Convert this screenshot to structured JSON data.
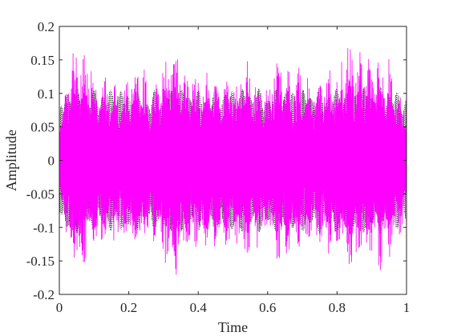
{
  "chart_data": {
    "type": "line",
    "title": "",
    "xlabel": "Time",
    "ylabel": "Amplitude",
    "xlim": [
      0,
      1
    ],
    "ylim": [
      -0.2,
      0.2
    ],
    "x_ticks": [
      0,
      0.2,
      0.4,
      0.6,
      0.8,
      1
    ],
    "x_tick_labels": [
      "0",
      "0.2",
      "0.4",
      "0.6",
      "0.8",
      "1"
    ],
    "y_ticks": [
      -0.2,
      -0.15,
      -0.1,
      -0.05,
      0,
      0.05,
      0.1,
      0.15,
      0.2
    ],
    "y_tick_labels": [
      "-0.2",
      "-0.15",
      "-0.1",
      "-0.05",
      "0",
      "0.05",
      "0.1",
      "0.15",
      "0.2"
    ],
    "grid": false,
    "legend": "none",
    "series": [
      {
        "style": "dotted",
        "color": "#000000",
        "description_values": "dense oscillation bounded by about ±0.11",
        "envelope": [
          [
            0.0,
            0.08
          ],
          [
            0.02,
            0.11
          ],
          [
            0.05,
            0.11
          ],
          [
            0.1,
            0.105
          ],
          [
            0.15,
            0.11
          ],
          [
            0.2,
            0.108
          ],
          [
            0.25,
            0.1
          ],
          [
            0.3,
            0.11
          ],
          [
            0.35,
            0.11
          ],
          [
            0.4,
            0.105
          ],
          [
            0.45,
            0.108
          ],
          [
            0.5,
            0.11
          ],
          [
            0.55,
            0.11
          ],
          [
            0.6,
            0.105
          ],
          [
            0.65,
            0.11
          ],
          [
            0.7,
            0.108
          ],
          [
            0.75,
            0.11
          ],
          [
            0.8,
            0.11
          ],
          [
            0.85,
            0.108
          ],
          [
            0.9,
            0.11
          ],
          [
            0.95,
            0.11
          ],
          [
            1.0,
            0.1
          ]
        ]
      },
      {
        "style": "solid",
        "color": "#ff00ff",
        "envelope": [
          [
            0.0,
            0.05
          ],
          [
            0.02,
            0.12
          ],
          [
            0.05,
            0.155
          ],
          [
            0.08,
            0.15
          ],
          [
            0.1,
            0.13
          ],
          [
            0.13,
            0.12
          ],
          [
            0.16,
            0.11
          ],
          [
            0.2,
            0.12
          ],
          [
            0.23,
            0.14
          ],
          [
            0.26,
            0.1
          ],
          [
            0.3,
            0.14
          ],
          [
            0.33,
            0.17
          ],
          [
            0.36,
            0.13
          ],
          [
            0.4,
            0.115
          ],
          [
            0.43,
            0.13
          ],
          [
            0.46,
            0.125
          ],
          [
            0.5,
            0.12
          ],
          [
            0.53,
            0.14
          ],
          [
            0.56,
            0.125
          ],
          [
            0.6,
            0.1
          ],
          [
            0.63,
            0.14
          ],
          [
            0.66,
            0.135
          ],
          [
            0.7,
            0.12
          ],
          [
            0.73,
            0.11
          ],
          [
            0.76,
            0.12
          ],
          [
            0.8,
            0.13
          ],
          [
            0.83,
            0.155
          ],
          [
            0.86,
            0.15
          ],
          [
            0.9,
            0.145
          ],
          [
            0.93,
            0.15
          ],
          [
            0.96,
            0.13
          ],
          [
            1.0,
            0.08
          ]
        ]
      }
    ]
  }
}
